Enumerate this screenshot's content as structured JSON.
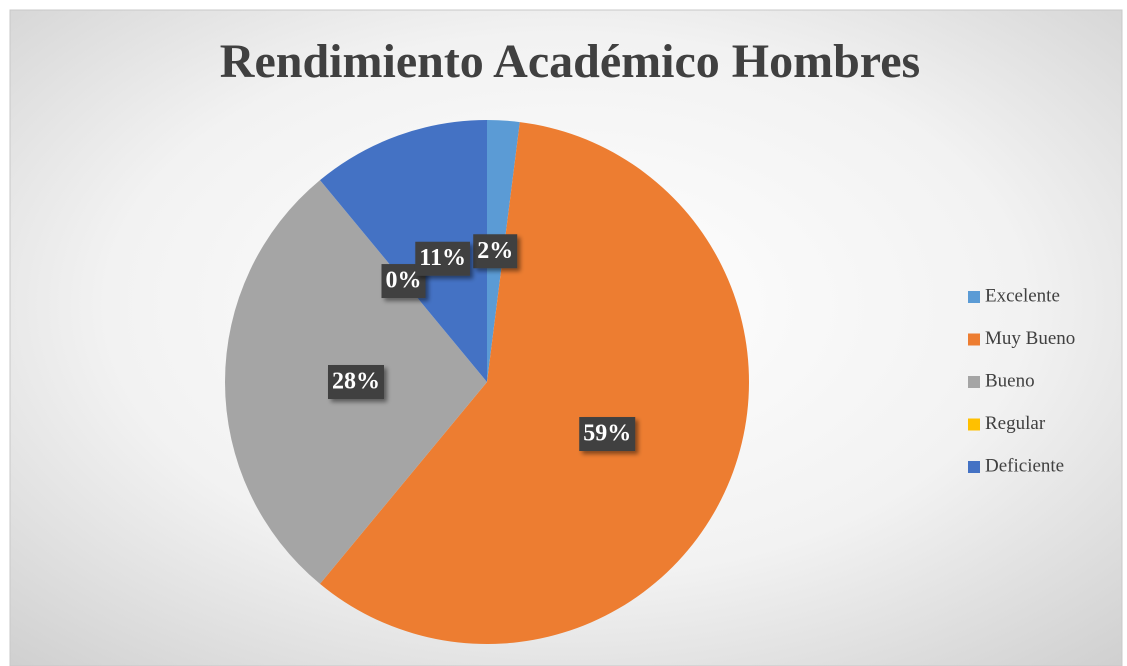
{
  "chart_data": {
    "type": "pie",
    "title": "Rendimiento Académico Hombres",
    "categories": [
      "Excelente",
      "Muy Bueno",
      "Bueno",
      "Regular",
      "Deficiente"
    ],
    "values": [
      2,
      59,
      28,
      0,
      11
    ],
    "value_labels": [
      "2%",
      "59%",
      "28%",
      "0%",
      "11%"
    ],
    "colors": [
      "#5b9bd5",
      "#ed7d31",
      "#a5a5a5",
      "#ffc000",
      "#4472c4"
    ],
    "legend": "right"
  }
}
